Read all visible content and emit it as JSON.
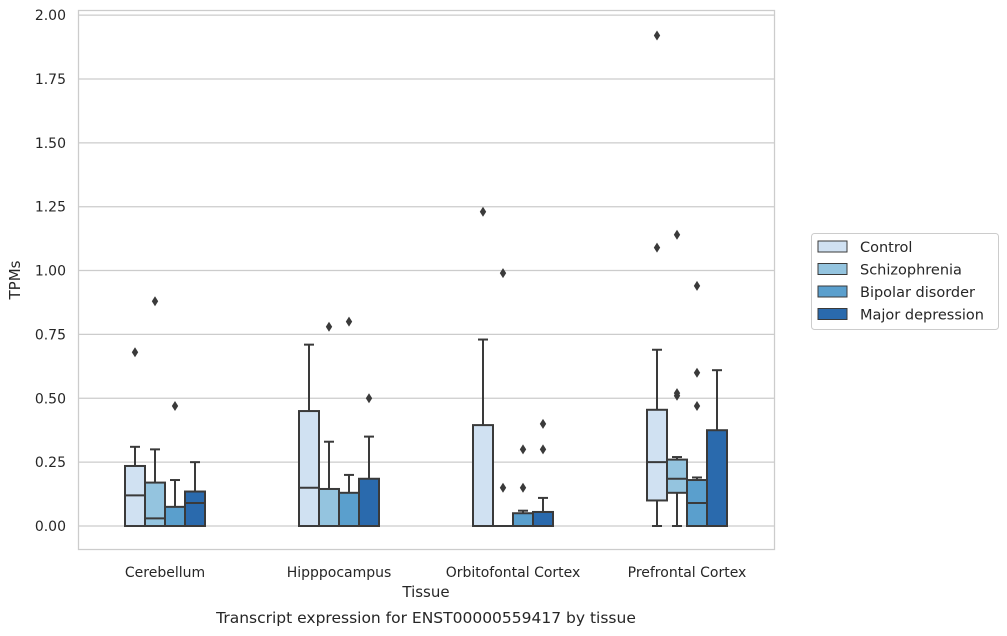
{
  "chart_data": {
    "type": "box",
    "title": "",
    "caption": "Transcript expression for ENST00000559417 by tissue",
    "xlabel": "Tissue",
    "ylabel": "TPMs",
    "ylim": [
      -0.09,
      2.02
    ],
    "yticks": [
      "0.00",
      "0.25",
      "0.50",
      "0.75",
      "1.00",
      "1.25",
      "1.50",
      "1.75",
      "2.00"
    ],
    "grid": "horizontal",
    "legend_position": "right",
    "categories": [
      "Cerebellum",
      "Hipppocampus",
      "Orbitofontal Cortex",
      "Prefrontal Cortex"
    ],
    "series": [
      {
        "name": "Control",
        "color": "#d0e1f2",
        "boxes": [
          {
            "whislo": 0.0,
            "q1": 0.0,
            "med": 0.12,
            "q3": 0.235,
            "whishi": 0.31,
            "fliers": [
              0.68
            ]
          },
          {
            "whislo": 0.0,
            "q1": 0.0,
            "med": 0.15,
            "q3": 0.45,
            "whishi": 0.71,
            "fliers": []
          },
          {
            "whislo": 0.0,
            "q1": 0.0,
            "med": 0.0,
            "q3": 0.395,
            "whishi": 0.73,
            "fliers": [
              1.23
            ]
          },
          {
            "whislo": 0.0,
            "q1": 0.1,
            "med": 0.25,
            "q3": 0.455,
            "whishi": 0.69,
            "fliers": [
              1.09,
              1.92
            ]
          }
        ]
      },
      {
        "name": "Schizophrenia",
        "color": "#94c4df",
        "boxes": [
          {
            "whislo": 0.0,
            "q1": 0.0,
            "med": 0.03,
            "q3": 0.17,
            "whishi": 0.3,
            "fliers": [
              0.88
            ]
          },
          {
            "whislo": 0.0,
            "q1": 0.0,
            "med": 0.0,
            "q3": 0.145,
            "whishi": 0.33,
            "fliers": [
              0.78
            ]
          },
          {
            "whislo": 0.0,
            "q1": 0.0,
            "med": 0.0,
            "q3": 0.0,
            "whishi": 0.0,
            "fliers": [
              0.15,
              0.99
            ]
          },
          {
            "whislo": 0.0,
            "q1": 0.13,
            "med": 0.185,
            "q3": 0.26,
            "whishi": 0.27,
            "fliers": [
              0.51,
              0.52,
              1.14
            ]
          }
        ]
      },
      {
        "name": "Bipolar disorder",
        "color": "#5a9fcd",
        "boxes": [
          {
            "whislo": 0.0,
            "q1": 0.0,
            "med": 0.0,
            "q3": 0.075,
            "whishi": 0.18,
            "fliers": [
              0.47
            ]
          },
          {
            "whislo": 0.0,
            "q1": 0.0,
            "med": 0.0,
            "q3": 0.13,
            "whishi": 0.2,
            "fliers": [
              0.8
            ]
          },
          {
            "whislo": 0.0,
            "q1": 0.0,
            "med": 0.0,
            "q3": 0.05,
            "whishi": 0.06,
            "fliers": [
              0.15,
              0.3
            ]
          },
          {
            "whislo": 0.0,
            "q1": 0.0,
            "med": 0.09,
            "q3": 0.18,
            "whishi": 0.19,
            "fliers": [
              0.47,
              0.6,
              0.94
            ]
          }
        ]
      },
      {
        "name": "Major depression",
        "color": "#2a6aad",
        "boxes": [
          {
            "whislo": 0.0,
            "q1": 0.0,
            "med": 0.09,
            "q3": 0.135,
            "whishi": 0.25,
            "fliers": []
          },
          {
            "whislo": 0.0,
            "q1": 0.0,
            "med": 0.0,
            "q3": 0.185,
            "whishi": 0.35,
            "fliers": [
              0.5
            ]
          },
          {
            "whislo": 0.0,
            "q1": 0.0,
            "med": 0.0,
            "q3": 0.055,
            "whishi": 0.11,
            "fliers": [
              0.3,
              0.4
            ]
          },
          {
            "whislo": 0.0,
            "q1": 0.0,
            "med": 0.0,
            "q3": 0.375,
            "whishi": 0.61,
            "fliers": []
          }
        ]
      }
    ]
  }
}
